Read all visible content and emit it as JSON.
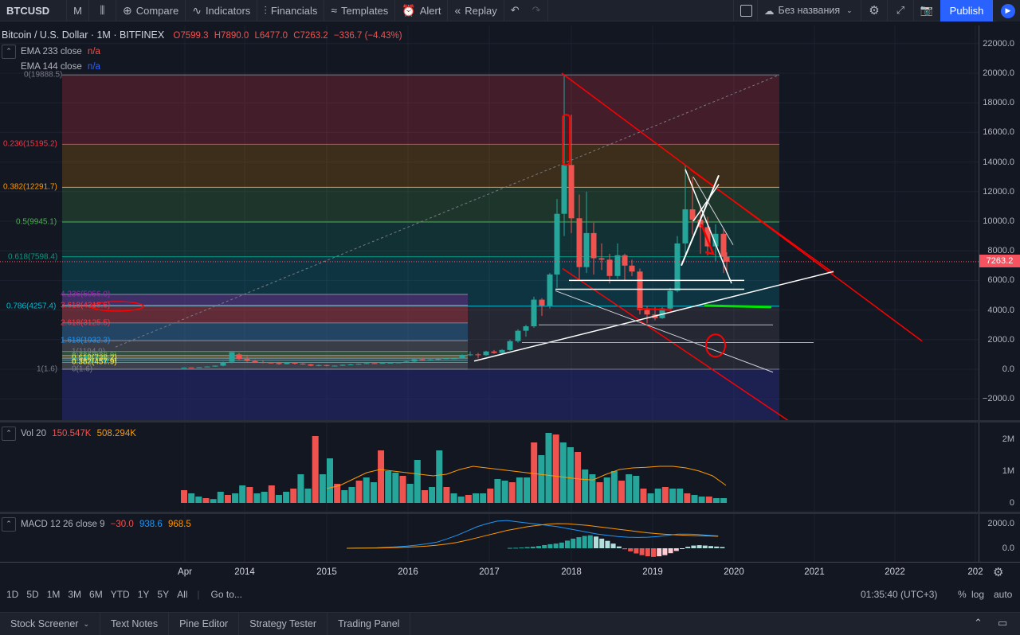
{
  "toolbar": {
    "symbol": "BTCUSD",
    "interval": "M",
    "compare": "Compare",
    "indicators": "Indicators",
    "financials": "Financials",
    "templates": "Templates",
    "alert": "Alert",
    "replay": "Replay",
    "layout_name": "Без названия",
    "publish": "Publish"
  },
  "header": {
    "title": "Bitcoin / U.S. Dollar · 1M · BITFINEX",
    "open": "O7599.3",
    "high": "H7890.0",
    "low": "L6477.0",
    "close": "C7263.2",
    "change": "−336.7 (−4.43%)"
  },
  "indicators": {
    "ema233_label": "EMA 233 close",
    "ema233_value": "n/a",
    "ema144_label": "EMA 144 close",
    "ema144_value": "n/a",
    "vol_label": "Vol 20",
    "vol_value1": "150.547K",
    "vol_value2": "508.294K",
    "macd_label": "MACD 12 26 close 9",
    "macd_v1": "−30.0",
    "macd_v2": "938.6",
    "macd_v3": "968.5"
  },
  "price_axis": {
    "labels": [
      "22000.0",
      "20000.0",
      "18000.0",
      "16000.0",
      "14000.0",
      "12000.0",
      "10000.0",
      "8000.0",
      "6000.0",
      "4000.0",
      "2000.0",
      "0.0",
      "−2000.0"
    ],
    "current_price": "7263.2"
  },
  "volume_axis": {
    "labels": [
      "2M",
      "1M",
      "0"
    ]
  },
  "macd_axis": {
    "labels": [
      "2000.0",
      "0.0"
    ]
  },
  "time_axis": {
    "labels": [
      "Apr",
      "2014",
      "2015",
      "2016",
      "2017",
      "2018",
      "2019",
      "2020",
      "2021",
      "2022",
      "202"
    ]
  },
  "fib_main": [
    {
      "ratio": "0(19888.5)",
      "price": 19888.5
    },
    {
      "ratio": "0.236(15195.2)",
      "price": 15195.2
    },
    {
      "ratio": "0.382(12291.7)",
      "price": 12291.7
    },
    {
      "ratio": "0.5(9945.1)",
      "price": 9945.1
    },
    {
      "ratio": "0.618(7598.4)",
      "price": 7598.4
    },
    {
      "ratio": "0.786(4257.4)",
      "price": 4257.4
    },
    {
      "ratio": "1(1.6)",
      "price": 1.6
    }
  ],
  "fib_ext": [
    {
      "ratio": "4.236(5056.0)",
      "price": 5056.0
    },
    {
      "ratio": "3.618(4318.6)",
      "price": 4318.6
    },
    {
      "ratio": "2.618(3125.5)",
      "price": 3125.5
    },
    {
      "ratio": "1.618(1932.3)",
      "price": 1932.3
    },
    {
      "ratio": "1(1194.9)",
      "price": 1194.9
    },
    {
      "ratio": "0.786(938.9)",
      "price": 938.9
    },
    {
      "ratio": "0.618(738.2)",
      "price": 738.2
    },
    {
      "ratio": "0.5(597.3)",
      "price": 597.3
    },
    {
      "ratio": "0.382(457.9)",
      "price": 457.9
    },
    {
      "ratio": "0(1.6)",
      "price": 1.6
    }
  ],
  "colors": {
    "up": "#26a69a",
    "down": "#ef5350",
    "accent": "#2962ff",
    "drawing_red": "#ff0000",
    "drawing_green": "#00e600"
  },
  "bottombar": {
    "ranges": [
      "1D",
      "5D",
      "1M",
      "3M",
      "6M",
      "YTD",
      "1Y",
      "5Y",
      "All"
    ],
    "goto": "Go to...",
    "clock": "01:35:40 (UTC+3)",
    "percent": "%",
    "log": "log",
    "auto": "auto"
  },
  "footer": {
    "tabs": [
      "Stock Screener",
      "Text Notes",
      "Pine Editor",
      "Strategy Tester",
      "Trading Panel"
    ]
  }
}
